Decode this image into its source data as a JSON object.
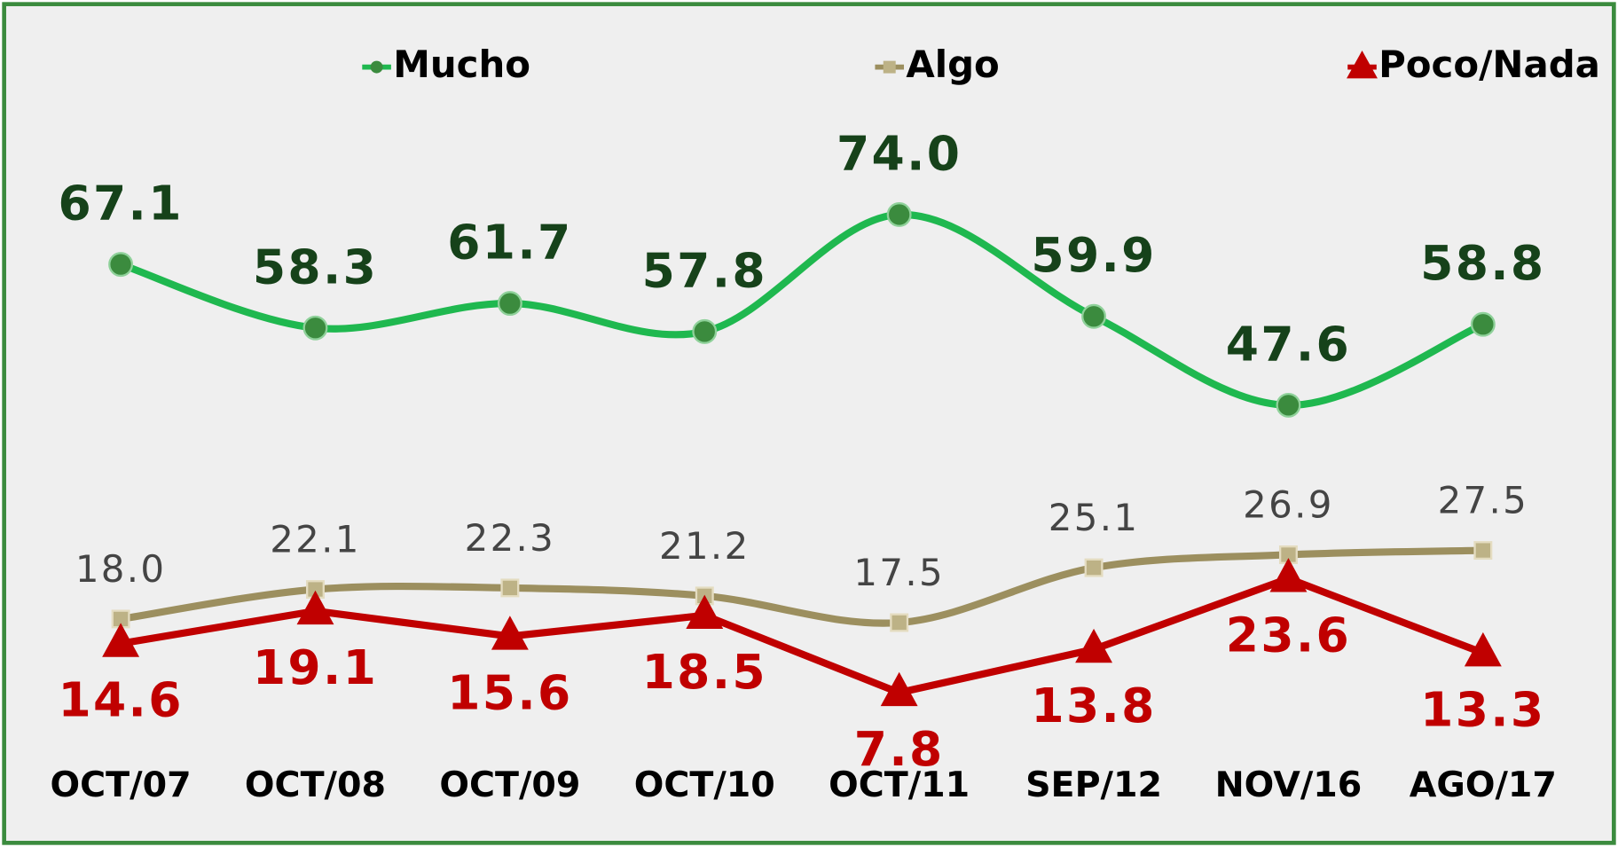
{
  "chart_data": {
    "type": "line",
    "categories": [
      "OCT/07",
      "OCT/08",
      "OCT/09",
      "OCT/10",
      "OCT/11",
      "SEP/12",
      "NOV/16",
      "AGO/17"
    ],
    "series": [
      {
        "name": "Mucho",
        "color": "#1fb84f",
        "marker": "circle",
        "marker_color": "#3b8b3e",
        "smooth": true,
        "label_color": "#16421a",
        "label_position": "above",
        "values": [
          67.1,
          58.3,
          61.7,
          57.8,
          74.0,
          59.9,
          47.6,
          58.8
        ],
        "value_labels": [
          "67.1",
          "58.3",
          "61.7",
          "57.8",
          "74.0",
          "59.9",
          "47.6",
          "58.8"
        ]
      },
      {
        "name": "Algo",
        "color": "#9c8f5f",
        "marker": "square",
        "marker_color": "#bdb286",
        "smooth": true,
        "label_color": "#444444",
        "label_position": "above",
        "values": [
          18.0,
          22.1,
          22.3,
          21.2,
          17.5,
          25.1,
          26.9,
          27.5
        ],
        "value_labels": [
          "18.0",
          "22.1",
          "22.3",
          "21.2",
          "17.5",
          "25.1",
          "26.9",
          "27.5"
        ]
      },
      {
        "name": "Poco/Nada",
        "color": "#c00000",
        "marker": "triangle",
        "marker_color": "#c00000",
        "smooth": false,
        "label_color": "#c00000",
        "label_position": "below",
        "values": [
          14.6,
          19.1,
          15.6,
          18.5,
          7.8,
          13.8,
          23.6,
          13.3
        ],
        "value_labels": [
          "14.6",
          "19.1",
          "15.6",
          "18.5",
          "7.8",
          "13.8",
          "23.6",
          "13.3"
        ]
      }
    ],
    "legend": "top"
  }
}
